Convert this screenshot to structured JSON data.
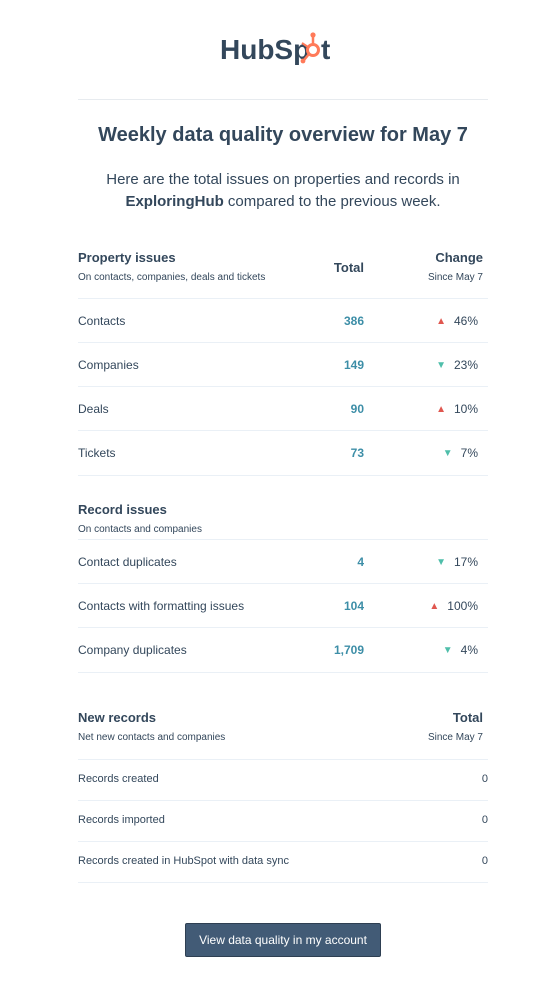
{
  "brand": {
    "logo_text_1": "HubSp",
    "logo_text_2": "t",
    "accent": "#ff7a59",
    "text_color": "#33475b"
  },
  "title": "Weekly data quality overview for May 7",
  "intro": {
    "line1": "Here are the total issues on properties and records in",
    "portal": "ExploringHub",
    "line2": " compared to the previous week."
  },
  "property_issues": {
    "title": "Property issues",
    "subtitle": "On contacts, companies, deals and tickets",
    "total_header": "Total",
    "change_header": "Change",
    "change_sub": "Since May 7",
    "rows": [
      {
        "label": "Contacts",
        "total": "386",
        "direction": "up",
        "change": "46%"
      },
      {
        "label": "Companies",
        "total": "149",
        "direction": "down",
        "change": "23%"
      },
      {
        "label": "Deals",
        "total": "90",
        "direction": "up",
        "change": "10%"
      },
      {
        "label": "Tickets",
        "total": "73",
        "direction": "down",
        "change": "7%"
      }
    ]
  },
  "record_issues": {
    "title": "Record issues",
    "subtitle": "On contacts and companies",
    "rows": [
      {
        "label": "Contact duplicates",
        "total": "4",
        "direction": "down",
        "change": "17%"
      },
      {
        "label": "Contacts with formatting issues",
        "total": "104",
        "direction": "up",
        "change": "100%"
      },
      {
        "label": "Company duplicates",
        "total": "1,709",
        "direction": "down",
        "change": "4%"
      }
    ]
  },
  "new_records": {
    "title": "New records",
    "subtitle": "Net new contacts and companies",
    "total_header": "Total",
    "total_sub": "Since May 7",
    "rows": [
      {
        "label": "Records created",
        "value": "0"
      },
      {
        "label": "Records imported",
        "value": "0"
      },
      {
        "label": "Records created in HubSpot with data sync",
        "value": "0"
      }
    ]
  },
  "colors": {
    "up": "#e0574f",
    "down": "#4fbeaa",
    "total_number": "#3d8ea7",
    "button_bg": "#425b76"
  },
  "cta_label": "View data quality in my account"
}
